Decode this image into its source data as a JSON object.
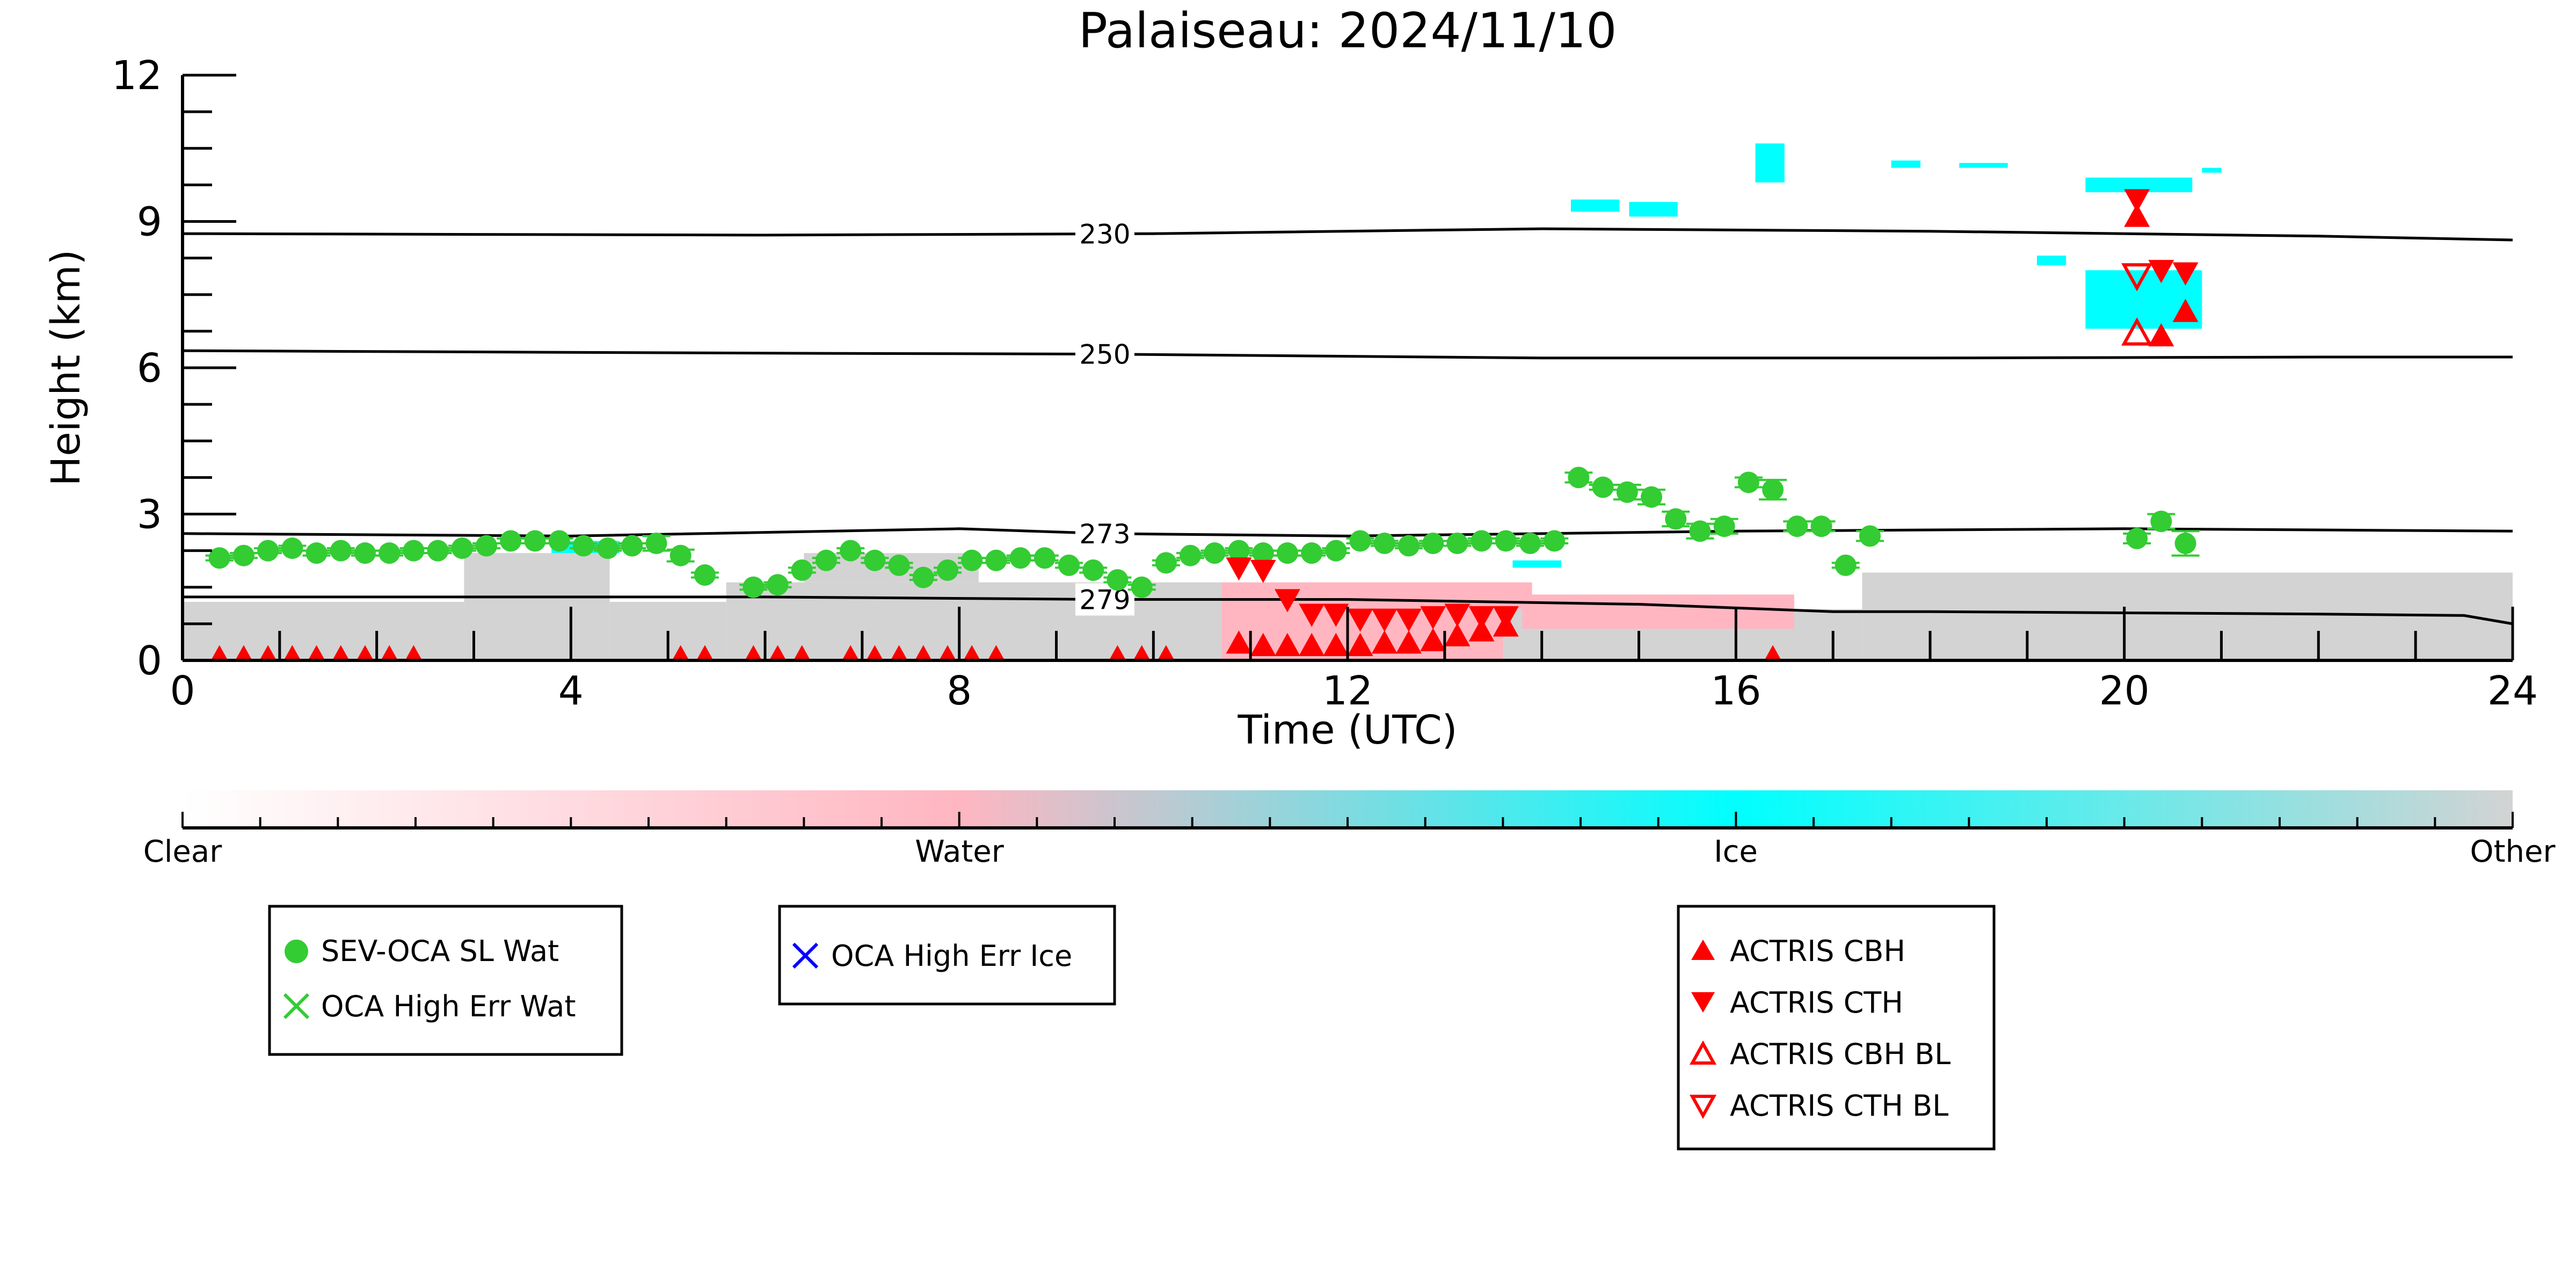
{
  "chart_data": {
    "type": "scatter",
    "title": "Palaiseau: 2024/11/10",
    "xlabel": "Time (UTC)",
    "ylabel": "Height (km)",
    "xlim": [
      0,
      24
    ],
    "ylim": [
      0,
      12
    ],
    "x_ticks": [
      0,
      4,
      8,
      12,
      16,
      20,
      24
    ],
    "y_ticks": [
      0,
      3,
      6,
      9,
      12
    ],
    "x_tick_labels": [
      "0",
      "4",
      "8",
      "12",
      "16",
      "20",
      "24"
    ],
    "y_tick_labels": [
      "0",
      "3",
      "6",
      "9",
      "12"
    ],
    "grid": false,
    "colorbar": {
      "labels": [
        "Clear",
        "Water",
        "Ice",
        "Other"
      ],
      "colors": [
        "#ffffff",
        "#ffb6c1",
        "#00ffff",
        "#d3d3d3"
      ]
    },
    "colors": {
      "clear": "#ffffff",
      "water": "#ffb6c1",
      "ice": "#00ffff",
      "other": "#d3d3d3",
      "sev": "#33cc33",
      "actris": "#ff0000",
      "oca_ice": "#0000ff"
    },
    "contours": [
      {
        "label": "230",
        "label_x": 9.5,
        "points": [
          [
            0,
            8.75
          ],
          [
            6,
            8.72
          ],
          [
            10,
            8.75
          ],
          [
            14,
            8.85
          ],
          [
            18,
            8.8
          ],
          [
            22,
            8.7
          ],
          [
            24,
            8.62
          ]
        ]
      },
      {
        "label": "250",
        "label_x": 9.5,
        "points": [
          [
            0,
            6.35
          ],
          [
            6,
            6.3
          ],
          [
            9.5,
            6.28
          ],
          [
            14,
            6.2
          ],
          [
            18,
            6.2
          ],
          [
            22,
            6.22
          ],
          [
            24,
            6.22
          ]
        ]
      },
      {
        "label": "273",
        "label_x": 9.5,
        "points": [
          [
            0,
            2.6
          ],
          [
            4,
            2.55
          ],
          [
            8,
            2.7
          ],
          [
            9.5,
            2.6
          ],
          [
            12,
            2.55
          ],
          [
            16,
            2.65
          ],
          [
            20,
            2.7
          ],
          [
            24,
            2.65
          ]
        ]
      },
      {
        "label": "279",
        "label_x": 9.5,
        "points": [
          [
            0,
            1.3
          ],
          [
            6,
            1.3
          ],
          [
            9.5,
            1.25
          ],
          [
            12,
            1.25
          ],
          [
            15,
            1.15
          ],
          [
            17,
            1.0
          ],
          [
            18,
            1.0
          ],
          [
            22,
            0.95
          ],
          [
            23.5,
            0.92
          ],
          [
            24,
            0.75
          ]
        ]
      }
    ],
    "cloud_regions": [
      {
        "class": "other",
        "x0": 0.0,
        "x1": 2.9,
        "y0": 0.0,
        "y1": 1.2
      },
      {
        "class": "other",
        "x0": 2.9,
        "x1": 4.4,
        "y0": 0.0,
        "y1": 2.2
      },
      {
        "class": "other",
        "x0": 4.4,
        "x1": 5.6,
        "y0": 0.0,
        "y1": 1.2
      },
      {
        "class": "other",
        "x0": 5.6,
        "x1": 10.7,
        "y0": 0.0,
        "y1": 1.6
      },
      {
        "class": "other",
        "x0": 6.4,
        "x1": 8.2,
        "y0": 1.6,
        "y1": 2.2
      },
      {
        "class": "water",
        "x0": 10.7,
        "x1": 13.9,
        "y0": 0.0,
        "y1": 1.6
      },
      {
        "class": "other",
        "x0": 13.6,
        "x1": 17.3,
        "y0": 0.0,
        "y1": 1.05
      },
      {
        "class": "water",
        "x0": 13.8,
        "x1": 16.6,
        "y0": 0.65,
        "y1": 1.35
      },
      {
        "class": "other",
        "x0": 17.3,
        "x1": 24.0,
        "y0": 0.0,
        "y1": 1.8
      },
      {
        "class": "ice",
        "x0": 3.8,
        "x1": 4.5,
        "y0": 2.2,
        "y1": 2.45
      },
      {
        "class": "ice",
        "x0": 13.7,
        "x1": 14.2,
        "y0": 1.9,
        "y1": 2.05
      },
      {
        "class": "ice",
        "x0": 19.6,
        "x1": 20.8,
        "y0": 6.8,
        "y1": 8.0
      },
      {
        "class": "ice",
        "x0": 14.3,
        "x1": 14.8,
        "y0": 9.2,
        "y1": 9.45
      },
      {
        "class": "ice",
        "x0": 14.9,
        "x1": 15.4,
        "y0": 9.1,
        "y1": 9.4
      },
      {
        "class": "ice",
        "x0": 16.2,
        "x1": 16.5,
        "y0": 9.8,
        "y1": 10.6
      },
      {
        "class": "ice",
        "x0": 17.6,
        "x1": 17.9,
        "y0": 10.1,
        "y1": 10.25
      },
      {
        "class": "ice",
        "x0": 18.3,
        "x1": 18.8,
        "y0": 10.1,
        "y1": 10.2
      },
      {
        "class": "ice",
        "x0": 19.6,
        "x1": 20.7,
        "y0": 9.6,
        "y1": 9.9
      },
      {
        "class": "ice",
        "x0": 20.8,
        "x1": 21.0,
        "y0": 10.0,
        "y1": 10.1
      },
      {
        "class": "ice",
        "x0": 19.1,
        "x1": 19.4,
        "y0": 8.1,
        "y1": 8.3
      }
    ],
    "series": [
      {
        "name": "SEV-OCA SL Wat",
        "type": "scatter",
        "marker": "circle",
        "x": [
          0.38,
          0.63,
          0.88,
          1.13,
          1.38,
          1.63,
          1.88,
          2.13,
          2.38,
          2.63,
          2.88,
          3.13,
          3.38,
          3.63,
          3.88,
          4.13,
          4.38,
          4.63,
          4.88,
          5.13,
          5.38,
          5.88,
          6.13,
          6.38,
          6.63,
          6.88,
          7.13,
          7.38,
          7.63,
          7.88,
          8.13,
          8.38,
          8.63,
          8.88,
          9.13,
          9.38,
          9.63,
          9.88,
          10.13,
          10.38,
          10.63,
          10.88,
          11.13,
          11.38,
          11.63,
          11.88,
          12.13,
          12.38,
          12.63,
          12.88,
          13.13,
          13.38,
          13.63,
          13.88,
          14.13,
          14.38,
          14.63,
          14.88,
          15.13,
          15.38,
          15.63,
          15.88,
          16.13,
          16.38,
          16.63,
          16.88,
          17.13,
          17.38,
          20.13,
          20.38,
          20.63
        ],
        "y": [
          2.1,
          2.15,
          2.25,
          2.3,
          2.2,
          2.25,
          2.2,
          2.2,
          2.25,
          2.25,
          2.3,
          2.35,
          2.45,
          2.45,
          2.45,
          2.35,
          2.3,
          2.35,
          2.4,
          2.15,
          1.75,
          1.5,
          1.55,
          1.85,
          2.05,
          2.25,
          2.05,
          1.95,
          1.7,
          1.85,
          2.05,
          2.05,
          2.1,
          2.1,
          1.95,
          1.85,
          1.65,
          1.5,
          2.0,
          2.15,
          2.2,
          2.25,
          2.2,
          2.2,
          2.2,
          2.25,
          2.45,
          2.4,
          2.35,
          2.4,
          2.4,
          2.45,
          2.45,
          2.4,
          2.45,
          3.75,
          3.55,
          3.45,
          3.35,
          2.9,
          2.65,
          2.75,
          3.65,
          3.5,
          2.75,
          2.75,
          1.95,
          2.55,
          2.5,
          2.85,
          2.4
        ],
        "yerr": [
          0.05,
          0.05,
          0.05,
          0.05,
          0.05,
          0.05,
          0.05,
          0.05,
          0.05,
          0.05,
          0.05,
          0.05,
          0.05,
          0.05,
          0.05,
          0.05,
          0.05,
          0.05,
          0.15,
          0.12,
          0.05,
          0.05,
          0.05,
          0.05,
          0.05,
          0.05,
          0.05,
          0.05,
          0.05,
          0.05,
          0.05,
          0.05,
          0.05,
          0.05,
          0.05,
          0.05,
          0.05,
          0.05,
          0.05,
          0.05,
          0.05,
          0.05,
          0.05,
          0.05,
          0.05,
          0.05,
          0.05,
          0.05,
          0.05,
          0.05,
          0.05,
          0.05,
          0.05,
          0.05,
          0.05,
          0.1,
          0.05,
          0.15,
          0.15,
          0.15,
          0.15,
          0.15,
          0.1,
          0.2,
          0.1,
          0.1,
          0.05,
          0.1,
          0.1,
          0.15,
          0.25
        ]
      },
      {
        "name": "OCA High Err Wat",
        "type": "scatter",
        "marker": "x",
        "x": [],
        "y": []
      },
      {
        "name": "OCA High Err Ice",
        "type": "scatter",
        "marker": "x",
        "x": [],
        "y": []
      },
      {
        "name": "ACTRIS CBH",
        "type": "scatter",
        "marker": "triangle-up",
        "x": [
          0.38,
          0.63,
          0.88,
          1.13,
          1.38,
          1.63,
          1.88,
          2.13,
          2.38,
          5.13,
          5.38,
          5.88,
          6.13,
          6.38,
          6.88,
          7.13,
          7.38,
          7.63,
          7.88,
          8.13,
          8.38,
          9.63,
          9.88,
          10.13,
          10.88,
          11.13,
          11.38,
          11.63,
          11.88,
          12.13,
          12.38,
          12.63,
          12.88,
          13.13,
          13.38,
          13.63,
          16.38,
          20.13,
          20.38,
          20.63
        ],
        "y": [
          0.05,
          0.05,
          0.05,
          0.05,
          0.05,
          0.05,
          0.05,
          0.05,
          0.05,
          0.05,
          0.05,
          0.05,
          0.05,
          0.05,
          0.05,
          0.05,
          0.05,
          0.05,
          0.05,
          0.05,
          0.05,
          0.05,
          0.05,
          0.05,
          0.35,
          0.3,
          0.3,
          0.3,
          0.3,
          0.3,
          0.35,
          0.35,
          0.4,
          0.5,
          0.6,
          0.7,
          0.05,
          9.1,
          6.65,
          7.15
        ]
      },
      {
        "name": "ACTRIS CTH",
        "type": "scatter",
        "marker": "triangle-down",
        "x": [
          10.88,
          11.13,
          11.38,
          11.63,
          11.88,
          12.13,
          12.38,
          12.63,
          12.88,
          13.13,
          13.38,
          13.63,
          20.13,
          20.38,
          20.63
        ],
        "y": [
          1.9,
          1.85,
          1.25,
          0.95,
          0.95,
          0.85,
          0.85,
          0.85,
          0.9,
          0.95,
          0.9,
          0.9,
          9.45,
          8.0,
          7.95
        ]
      },
      {
        "name": "ACTRIS CBH BL",
        "type": "scatter",
        "marker": "triangle-up-open",
        "x": [
          20.13
        ],
        "y": [
          6.7
        ]
      },
      {
        "name": "ACTRIS CTH BL",
        "type": "scatter",
        "marker": "triangle-down-open",
        "x": [
          20.13
        ],
        "y": [
          7.9
        ]
      }
    ]
  }
}
